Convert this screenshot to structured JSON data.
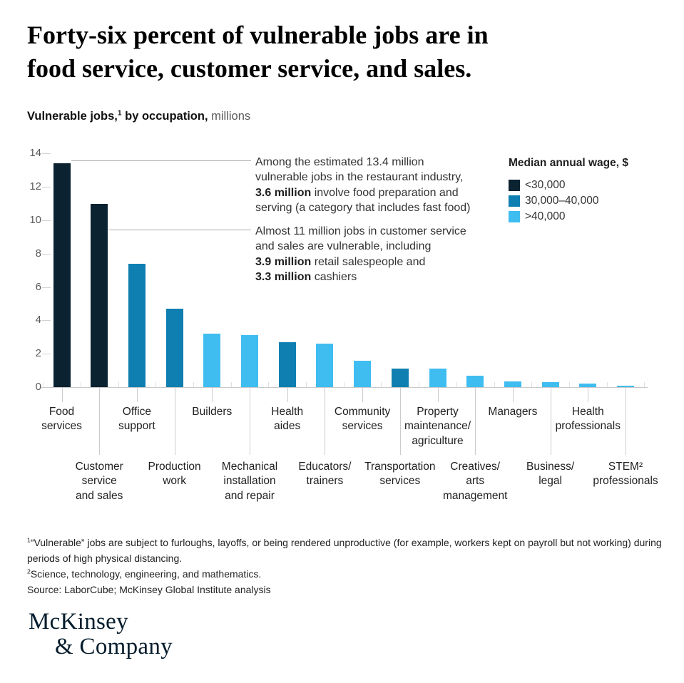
{
  "title": {
    "line1": "Forty-six percent of vulnerable jobs are in",
    "line2": "food service, customer service, and sales."
  },
  "subtitle": {
    "bold1": "Vulnerable jobs,",
    "sup": "1",
    "bold2": " by occupation,",
    "regular": " millions"
  },
  "chart_data": {
    "type": "bar",
    "title": "Vulnerable jobs, by occupation, millions",
    "xlabel": "",
    "ylabel": "millions",
    "ylim": [
      0,
      14
    ],
    "yticks": [
      0,
      2,
      4,
      6,
      8,
      10,
      12,
      14
    ],
    "grid": false,
    "legend_position": "top-right",
    "legend_title": "Median annual wage, $",
    "legend": [
      {
        "key": "dark",
        "label": "<30,000",
        "color": "#0b2231"
      },
      {
        "key": "medium",
        "label": "30,000–40,000",
        "color": "#0f7fb2"
      },
      {
        "key": "light",
        "label": ">40,000",
        "color": "#3fbdf1"
      }
    ],
    "bars": [
      {
        "category": "Food services",
        "label_lines": [
          "Food",
          "services"
        ],
        "row": 1,
        "value": 13.4,
        "wage": "dark"
      },
      {
        "category": "Customer service and sales",
        "label_lines": [
          "Customer",
          "service",
          "and sales"
        ],
        "row": 2,
        "value": 11.0,
        "wage": "dark"
      },
      {
        "category": "Office support",
        "label_lines": [
          "Office",
          "support"
        ],
        "row": 1,
        "value": 7.4,
        "wage": "medium"
      },
      {
        "category": "Production work",
        "label_lines": [
          "Production",
          "work"
        ],
        "row": 2,
        "value": 4.7,
        "wage": "medium"
      },
      {
        "category": "Builders",
        "label_lines": [
          "Builders"
        ],
        "row": 1,
        "value": 3.2,
        "wage": "light"
      },
      {
        "category": "Mechanical installation and repair",
        "label_lines": [
          "Mechanical",
          "installation",
          "and repair"
        ],
        "row": 2,
        "value": 3.1,
        "wage": "light"
      },
      {
        "category": "Health aides",
        "label_lines": [
          "Health",
          "aides"
        ],
        "row": 1,
        "value": 2.7,
        "wage": "medium"
      },
      {
        "category": "Educators/trainers",
        "label_lines": [
          "Educators/",
          "trainers"
        ],
        "row": 2,
        "value": 2.6,
        "wage": "light"
      },
      {
        "category": "Community services",
        "label_lines": [
          "Community",
          "services"
        ],
        "row": 1,
        "value": 1.6,
        "wage": "light"
      },
      {
        "category": "Transportation services",
        "label_lines": [
          "Transportation",
          "services"
        ],
        "row": 2,
        "value": 1.1,
        "wage": "medium"
      },
      {
        "category": "Property maintenance/agriculture",
        "label_lines": [
          "Property",
          "maintenance/",
          "agriculture"
        ],
        "row": 1,
        "value": 1.1,
        "wage": "light"
      },
      {
        "category": "Creatives/arts management",
        "label_lines": [
          "Creatives/",
          "arts",
          "management"
        ],
        "row": 2,
        "value": 0.7,
        "wage": "light"
      },
      {
        "category": "Managers",
        "label_lines": [
          "Managers"
        ],
        "row": 1,
        "value": 0.35,
        "wage": "light"
      },
      {
        "category": "Business/legal",
        "label_lines": [
          "Business/",
          "legal"
        ],
        "row": 2,
        "value": 0.3,
        "wage": "light"
      },
      {
        "category": "Health professionals",
        "label_lines": [
          "Health",
          "professionals"
        ],
        "row": 1,
        "value": 0.2,
        "wage": "light"
      },
      {
        "category": "STEM professionals",
        "label_lines": [
          "STEM²",
          "professionals"
        ],
        "row": 2,
        "value": 0.1,
        "wage": "light"
      }
    ],
    "annotations": [
      {
        "name": "annotation-restaurant",
        "lines": [
          [
            {
              "t": "Among the estimated 13.4 million",
              "b": false
            }
          ],
          [
            {
              "t": "vulnerable jobs in the restaurant industry,",
              "b": false
            }
          ],
          [
            {
              "t": "3.6 million",
              "b": true
            },
            {
              "t": " involve food preparation and",
              "b": false
            }
          ],
          [
            {
              "t": "serving (a category that includes fast food)",
              "b": false
            }
          ]
        ]
      },
      {
        "name": "annotation-customer-service",
        "lines": [
          [
            {
              "t": "Almost 11 million jobs in customer service",
              "b": false
            }
          ],
          [
            {
              "t": "and sales are vulnerable, including",
              "b": false
            }
          ],
          [
            {
              "t": "3.9 million",
              "b": true
            },
            {
              "t": " retail salespeople and",
              "b": false
            }
          ],
          [
            {
              "t": "3.3 million",
              "b": true
            },
            {
              "t": " cashiers",
              "b": false
            }
          ]
        ]
      }
    ]
  },
  "footnotes": {
    "note1_sup": "1",
    "note1_text": "“Vulnerable” jobs are subject to furloughs, layoffs, or being rendered unproductive (for example, workers kept on payroll but not working) during periods of high physical distancing.",
    "note2_sup": "2",
    "note2_text": "Science, technology, engineering, and mathematics.",
    "source": "Source: LaborCube; McKinsey Global Institute analysis"
  },
  "logo": {
    "line1": "McKinsey",
    "line2": "& Company",
    "color": "#051c2c"
  }
}
